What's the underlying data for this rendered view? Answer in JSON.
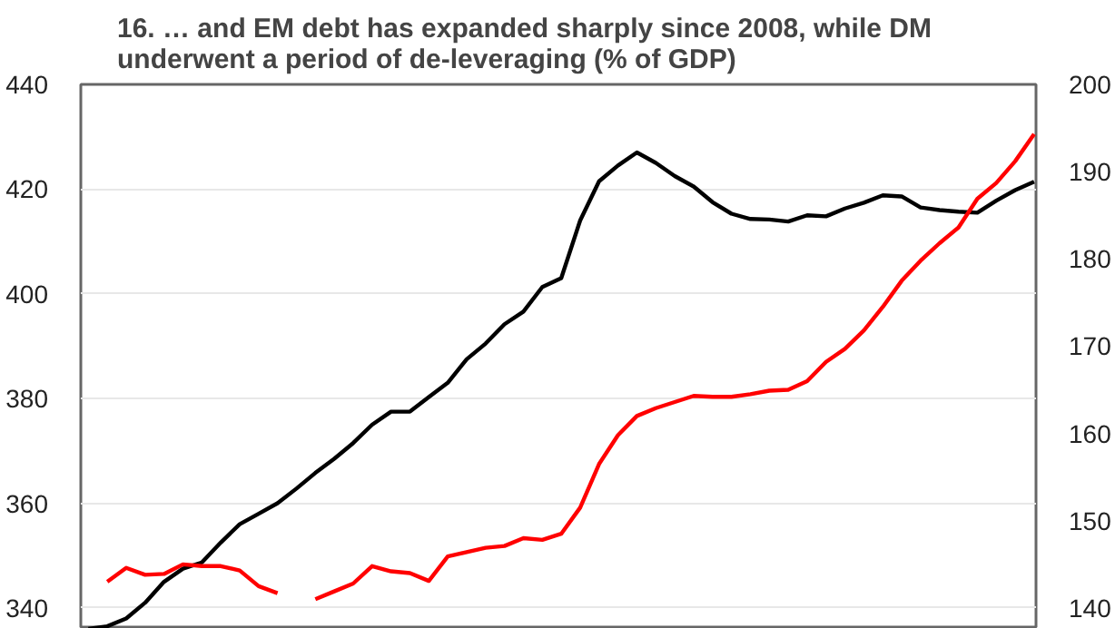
{
  "chart_data": {
    "type": "line",
    "title": "16.   … and EM debt has expanded sharply since 2008, while DM\n       underwent a period of de-leveraging (% of GDP)",
    "categories": [
      null,
      null,
      null,
      null,
      null,
      null,
      null,
      null,
      null,
      null,
      null,
      null,
      null,
      null,
      null,
      null,
      null,
      null,
      null,
      null,
      null,
      null,
      null,
      null,
      null,
      null,
      null,
      null,
      null,
      null,
      null,
      null,
      null,
      null,
      null,
      null,
      null,
      null,
      null,
      null,
      null,
      null,
      null,
      null,
      null,
      null,
      null,
      null,
      null,
      null,
      null
    ],
    "series": [
      {
        "color": "#000000",
        "values": [
          336,
          336.5,
          338,
          341,
          345,
          347.5,
          348.7,
          352.5,
          356,
          358,
          360,
          362.8,
          365.8,
          368.5,
          371.5,
          375,
          377.5,
          377.5,
          380.3,
          383,
          387.5,
          390.5,
          394.2,
          396.6,
          401.3,
          403,
          414,
          421.5,
          424.5,
          427,
          425,
          422.5,
          420.5,
          417.5,
          415.3,
          414.3,
          414.2,
          413.8,
          415,
          414.8,
          416.3,
          417.4,
          418.8,
          418.6,
          416.5,
          416,
          415.7,
          415.5,
          417.8,
          419.8,
          421.4
        ]
      },
      {
        "color": "#ff0000",
        "axis": "y2",
        "values": [
          null,
          143,
          144.6,
          143.8,
          143.9,
          145,
          144.8,
          144.8,
          144.3,
          142.5,
          141.7,
          null,
          141,
          141.9,
          142.8,
          144.8,
          144.2,
          144,
          143.1,
          145.9,
          146.4,
          146.9,
          147.1,
          148,
          147.8,
          148.5,
          151.5,
          156.5,
          159.8,
          162,
          162.9,
          163.6,
          164.3,
          164.2,
          164.2,
          164.5,
          164.9,
          165,
          166,
          168.2,
          169.7,
          171.8,
          174.5,
          177.5,
          179.8,
          181.8,
          183.6,
          186.9,
          188.7,
          191.2,
          194.3
        ]
      }
    ],
    "ylim": [
      336,
      440
    ],
    "yticks": [
      340,
      360,
      380,
      400,
      420,
      440
    ],
    "y2lim": [
      137.6,
      200
    ],
    "y2ticks": [
      140,
      150,
      160,
      170,
      180,
      190,
      200
    ],
    "grid": "y",
    "tick_labels": "y"
  }
}
